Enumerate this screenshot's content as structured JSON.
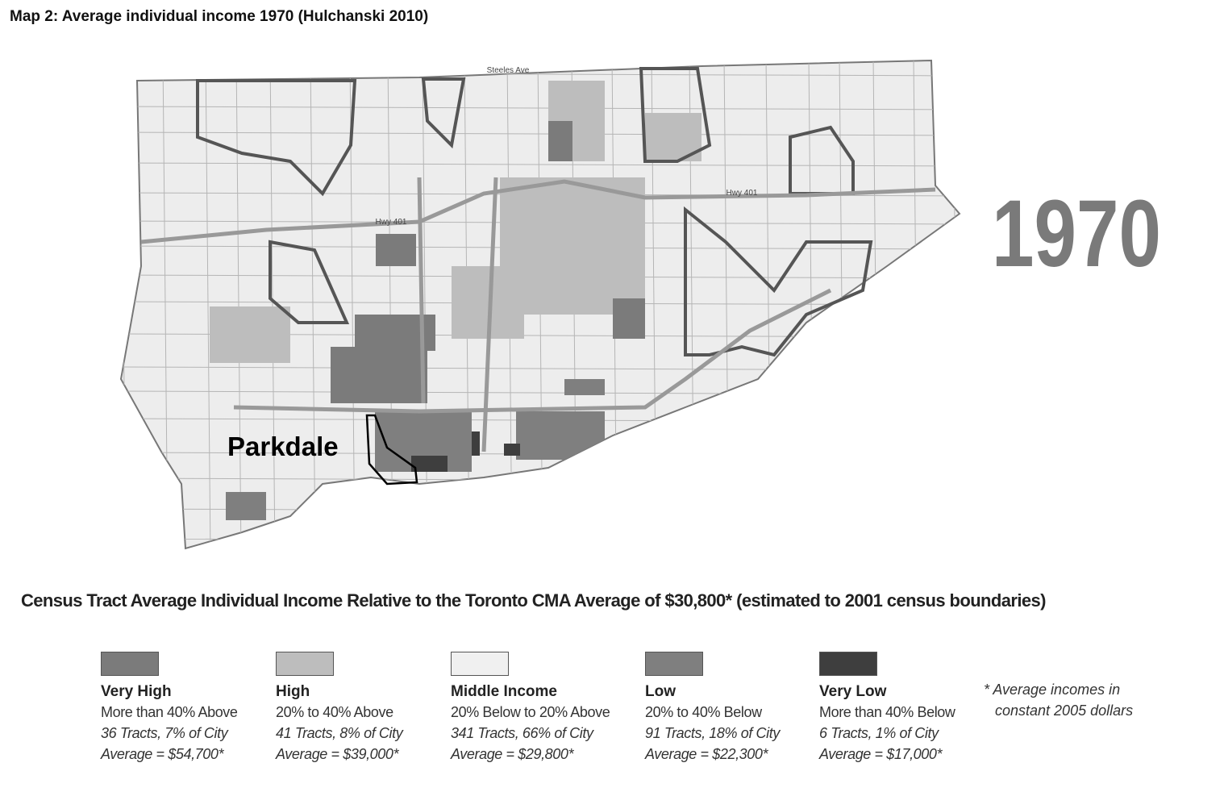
{
  "header": {
    "title": "Map 2: Average individual income 1970 (Hulchanski 2010)"
  },
  "map": {
    "year_label": "1970",
    "callout": "Parkdale",
    "road_labels": [
      "Steeles Ave",
      "Hwy 401",
      "Hwy 401"
    ]
  },
  "legend": {
    "heading": "Census Tract Average Individual Income Relative to the Toronto CMA Average of $30,800* (estimated to 2001 census boundaries)",
    "items": [
      {
        "name": "Very High",
        "range": "More than 40% Above",
        "tracts": "36 Tracts, 7% of City",
        "average": "Average = $54,700*",
        "color": "#7b7b7b"
      },
      {
        "name": "High",
        "range": "20% to 40% Above",
        "tracts": "41 Tracts, 8% of City",
        "average": "Average = $39,000*",
        "color": "#bdbdbd"
      },
      {
        "name": "Middle Income",
        "range": "20% Below to 20% Above",
        "tracts": "341 Tracts, 66% of City",
        "average": "Average = $29,800*",
        "color": "#f0f0f0"
      },
      {
        "name": "Low",
        "range": "20% to 40% Below",
        "tracts": "91 Tracts, 18% of City",
        "average": "Average = $22,300*",
        "color": "#7f7f7f"
      },
      {
        "name": "Very Low",
        "range": "More than 40% Below",
        "tracts": "6 Tracts, 1% of City",
        "average": "Average = $17,000*",
        "color": "#3e3e3e"
      }
    ],
    "note_lines": [
      "* Average incomes in",
      "constant 2005 dollars"
    ]
  }
}
